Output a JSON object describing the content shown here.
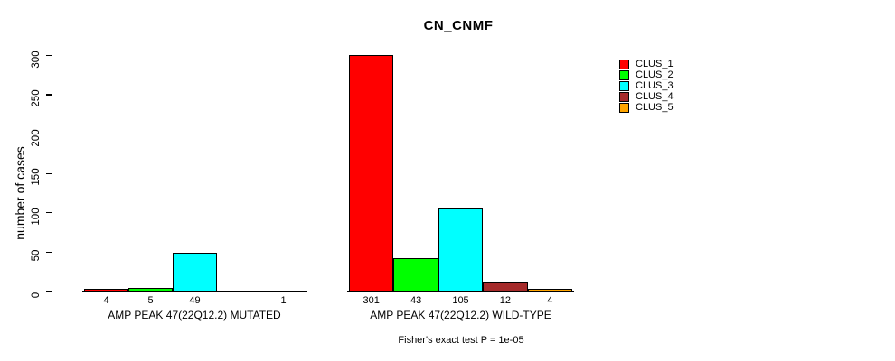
{
  "chart_data": {
    "type": "bar",
    "title": "CN_CNMF",
    "ylabel": "number of cases",
    "ylim": [
      0,
      300
    ],
    "yticks": [
      0,
      50,
      100,
      150,
      200,
      250,
      300
    ],
    "grid": false,
    "legend": {
      "position": "right",
      "entries": [
        {
          "label": "CLUS_1",
          "color": "#FF0000"
        },
        {
          "label": "CLUS_2",
          "color": "#00FF00"
        },
        {
          "label": "CLUS_3",
          "color": "#00FFFF"
        },
        {
          "label": "CLUS_4",
          "color": "#A52A2A"
        },
        {
          "label": "CLUS_5",
          "color": "#FFA500"
        }
      ]
    },
    "groups": [
      {
        "label": "AMP PEAK 47(22Q12.2) MUTATED",
        "values": [
          4,
          5,
          49,
          0,
          1
        ],
        "value_labels": [
          "4",
          "5",
          "49",
          "",
          "1"
        ]
      },
      {
        "label": "AMP PEAK 47(22Q12.2) WILD-TYPE",
        "values": [
          301,
          43,
          105,
          12,
          4
        ],
        "value_labels": [
          "301",
          "43",
          "105",
          "12",
          "4"
        ]
      }
    ],
    "annotation": "Fisher's exact test P = 1e-05"
  }
}
